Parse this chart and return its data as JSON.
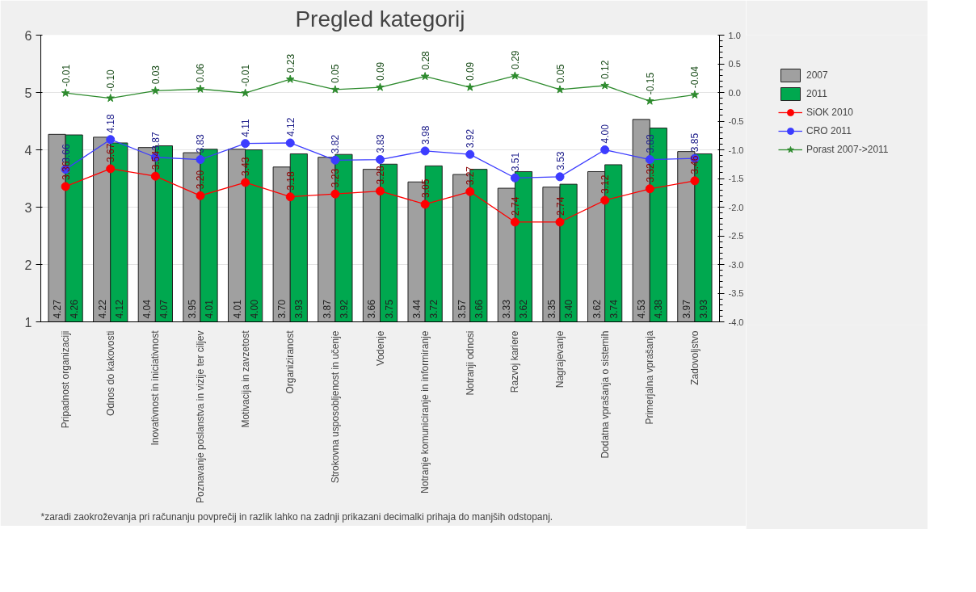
{
  "chart_data": {
    "type": "bar",
    "title": "Pregled kategorij",
    "categories": [
      "Pripadnost organizaciji",
      "Odnos do kakovosti",
      "Inovativnost in iniciativnost",
      "Poznavanje poslanstva in vizije ter ciljev",
      "Motivacija in zavzetost",
      "Organiziranost",
      "Strokovna usposobljenost in učenje",
      "Vodenje",
      "Notranje komuniciranje in informiranje",
      "Notranji odnosi",
      "Razvoj kariere",
      "Nagrajevanje",
      "Dodatna vprašanja o sistemih",
      "Primerjalna vprašanja",
      "Zadovoljstvo"
    ],
    "series": [
      {
        "name": "2007",
        "color": "#a0a0a0",
        "values": [
          4.27,
          4.22,
          4.04,
          3.95,
          4.01,
          3.7,
          3.87,
          3.66,
          3.44,
          3.57,
          3.33,
          3.35,
          3.62,
          4.53,
          3.97
        ],
        "value_labels": [
          "4.27",
          "4.22",
          "4.04",
          "3.95",
          "4.01",
          "3.70",
          "3.87",
          "3.66",
          "3.44",
          "3.57",
          "3.33",
          "3.35",
          "3.62",
          "4.53",
          "3.97"
        ]
      },
      {
        "name": "2011",
        "color": "#00a84f",
        "values": [
          4.26,
          4.12,
          4.07,
          4.01,
          4.0,
          3.93,
          3.92,
          3.75,
          3.72,
          3.66,
          3.62,
          3.4,
          3.74,
          4.38,
          3.93
        ],
        "value_labels": [
          "4.26",
          "4.12",
          "4.07",
          "4.01",
          "4.00",
          "3.93",
          "3.92",
          "3.75",
          "3.72",
          "3.66",
          "3.62",
          "3.40",
          "3.74",
          "4.38",
          "3.93"
        ]
      },
      {
        "name": "SiOK 2010",
        "type": "line",
        "color": "#ff0000",
        "marker": "circle",
        "values": [
          3.36,
          3.67,
          3.54,
          3.2,
          3.43,
          3.18,
          3.23,
          3.28,
          3.05,
          3.27,
          2.74,
          2.74,
          3.12,
          3.32,
          3.46
        ],
        "value_labels": [
          "3.36",
          "3.67",
          "3.54",
          "3.20",
          "3.43",
          "3.18",
          "3.23",
          "3.28",
          "3.05",
          "3.27",
          "2.74",
          "2.74",
          "3.12",
          "3.32",
          "3.46"
        ]
      },
      {
        "name": "CRO 2011",
        "type": "line",
        "color": "#3c3cff",
        "marker": "circle",
        "values": [
          3.66,
          4.18,
          3.87,
          3.83,
          4.11,
          4.12,
          3.82,
          3.83,
          3.98,
          3.92,
          3.51,
          3.53,
          4.0,
          3.83,
          3.85
        ],
        "value_labels": [
          "3.66",
          "4.18",
          "3.87",
          "3.83",
          "4.11",
          "4.12",
          "3.82",
          "3.83",
          "3.98",
          "3.92",
          "3.51",
          "3.53",
          "4.00",
          "3.83",
          "3.85"
        ]
      },
      {
        "name": "Porast 2007->2011",
        "type": "line",
        "color": "#2e8b2e",
        "marker": "star",
        "axis": "y2",
        "values": [
          -0.01,
          -0.1,
          0.03,
          0.06,
          -0.01,
          0.23,
          0.05,
          0.09,
          0.28,
          0.09,
          0.29,
          0.05,
          0.12,
          -0.15,
          -0.04
        ],
        "value_labels": [
          "-0.01",
          "-0.10",
          "0.03",
          "0.06",
          "-0.01",
          "0.23",
          "0.05",
          "0.09",
          "0.28",
          "0.09",
          "0.29",
          "0.05",
          "0.12",
          "-0.15",
          "-0.04"
        ]
      }
    ],
    "ylim": [
      1,
      6
    ],
    "yticks": [
      1,
      2,
      3,
      4,
      5,
      6
    ],
    "y2lim": [
      -4,
      1
    ],
    "y2ticks": [
      {
        "value": -4,
        "label": "-4.0"
      },
      {
        "value": -3.5,
        "label": "-3.5"
      },
      {
        "value": -3,
        "label": "-3.0"
      },
      {
        "value": -2.5,
        "label": "-2.5"
      },
      {
        "value": -2,
        "label": "-2.0"
      },
      {
        "value": -1.5,
        "label": "-1.5"
      },
      {
        "value": -1,
        "label": "-1.0"
      },
      {
        "value": -0.5,
        "label": "-0.5"
      },
      {
        "value": 0,
        "label": "0.0"
      },
      {
        "value": 0.5,
        "label": "0.5"
      },
      {
        "value": 1,
        "label": "1.0"
      }
    ],
    "grid": "y",
    "legend": "right",
    "annotations": [
      "*zaradi zaokroževanja pri računanju povprečij in razlik lahko na zadnji prikazani decimalki prihaja do manjših odstopanj."
    ]
  }
}
